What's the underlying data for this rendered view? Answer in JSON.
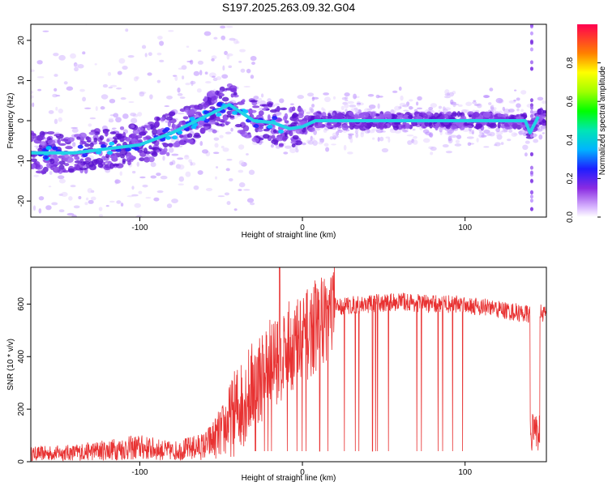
{
  "title": "S197.2025.263.09.32.G04",
  "chart_data": [
    {
      "type": "heatmap",
      "name": "radio-holographic spectrum",
      "xlabel": "Height of straight line (km)",
      "ylabel": "Frequency (Hz)",
      "xlim": [
        -167,
        150
      ],
      "ylim": [
        -24,
        24
      ],
      "xticks": [
        -100,
        0,
        100
      ],
      "yticks": [
        -20,
        -10,
        0,
        10,
        20
      ],
      "colorbar": {
        "label": "Normalized spectral amplitude",
        "range": [
          0,
          1
        ],
        "ticks": [
          0.0,
          0.2,
          0.4,
          0.6,
          0.8
        ]
      },
      "ridge": [
        {
          "x": -167,
          "y": -8
        },
        {
          "x": -140,
          "y": -8
        },
        {
          "x": -120,
          "y": -7
        },
        {
          "x": -100,
          "y": -6
        },
        {
          "x": -80,
          "y": -3
        },
        {
          "x": -60,
          "y": 1
        },
        {
          "x": -45,
          "y": 4
        },
        {
          "x": -30,
          "y": 0
        },
        {
          "x": -18,
          "y": -0.5
        },
        {
          "x": -8,
          "y": -2
        },
        {
          "x": 0,
          "y": -1.5
        },
        {
          "x": 8,
          "y": 0
        },
        {
          "x": 20,
          "y": 0
        },
        {
          "x": 137,
          "y": 0
        },
        {
          "x": 140,
          "y": -3
        },
        {
          "x": 145,
          "y": 1
        }
      ]
    },
    {
      "type": "line",
      "name": "SNR profile",
      "xlabel": "Height of straight line (km)",
      "ylabel": "SNR (10 * v/v)",
      "xlim": [
        -167,
        150
      ],
      "ylim": [
        0,
        740
      ],
      "xticks": [
        -100,
        0,
        100
      ],
      "yticks": [
        0,
        200,
        400,
        600
      ],
      "color": "#e83232",
      "envelope": [
        {
          "x": -167,
          "y": 30
        },
        {
          "x": -140,
          "y": 35
        },
        {
          "x": -120,
          "y": 45
        },
        {
          "x": -100,
          "y": 55
        },
        {
          "x": -80,
          "y": 40
        },
        {
          "x": -60,
          "y": 60
        },
        {
          "x": -50,
          "y": 110
        },
        {
          "x": -40,
          "y": 200
        },
        {
          "x": -30,
          "y": 290
        },
        {
          "x": -20,
          "y": 370
        },
        {
          "x": -10,
          "y": 430
        },
        {
          "x": 0,
          "y": 460
        },
        {
          "x": 10,
          "y": 530
        },
        {
          "x": 20,
          "y": 590
        },
        {
          "x": 40,
          "y": 600
        },
        {
          "x": 60,
          "y": 610
        },
        {
          "x": 80,
          "y": 600
        },
        {
          "x": 100,
          "y": 600
        },
        {
          "x": 120,
          "y": 580
        },
        {
          "x": 140,
          "y": 560
        },
        {
          "x": 150,
          "y": 570
        }
      ],
      "dropouts_below": 40,
      "peak": {
        "x": -14,
        "y": 740
      }
    }
  ]
}
